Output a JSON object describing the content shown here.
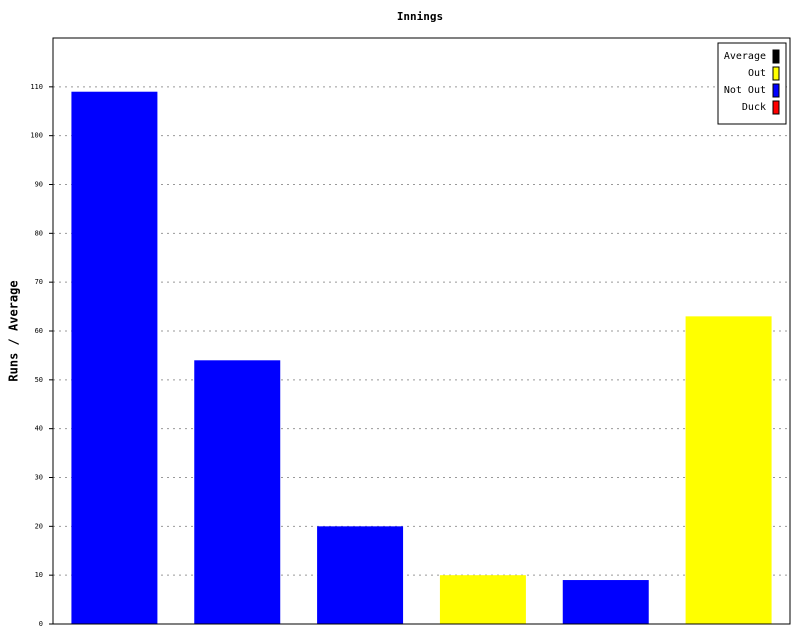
{
  "chart_data": {
    "type": "bar",
    "title": "Innings",
    "y_label": "Runs / Average",
    "categories": [
      null,
      null,
      null,
      null,
      null,
      null
    ],
    "series": [
      {
        "name": "Average",
        "color": "#000000",
        "values": [
          null,
          null,
          null,
          null,
          null,
          null
        ]
      },
      {
        "name": "Out",
        "color": "#ffff00",
        "values": [
          null,
          null,
          null,
          10,
          null,
          63
        ]
      },
      {
        "name": "Not Out",
        "color": "#0000ff",
        "values": [
          109,
          54,
          20,
          null,
          9,
          null
        ]
      },
      {
        "name": "Duck",
        "color": "#ff0000",
        "values": [
          null,
          null,
          null,
          null,
          null,
          null
        ]
      }
    ],
    "ylim": [
      0,
      120
    ],
    "yticks": [
      0,
      10,
      20,
      30,
      40,
      50,
      60,
      70,
      80,
      90,
      100,
      110
    ],
    "grid": true,
    "legend": "top-right"
  }
}
